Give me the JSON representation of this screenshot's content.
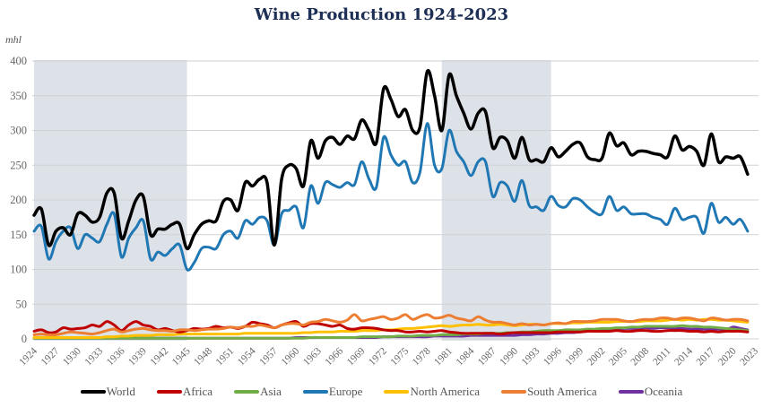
{
  "chart_data": {
    "type": "line",
    "title": "Wine Production 1924-2023",
    "ylabel": "mhl",
    "xlabel": "",
    "ylim": [
      0,
      400
    ],
    "yticks": [
      0,
      50,
      100,
      150,
      200,
      250,
      300,
      350,
      400
    ],
    "xlim": [
      1924,
      2023
    ],
    "xticks": [
      1924,
      1927,
      1930,
      1933,
      1936,
      1939,
      1942,
      1945,
      1948,
      1951,
      1954,
      1957,
      1960,
      1963,
      1966,
      1969,
      1972,
      1975,
      1978,
      1981,
      1984,
      1987,
      1990,
      1993,
      1996,
      1999,
      2002,
      2005,
      2008,
      2011,
      2014,
      2017,
      2020,
      2023
    ],
    "grid": true,
    "legend_position": "bottom",
    "shaded_periods": [
      [
        1924,
        1945
      ],
      [
        1980,
        1995
      ]
    ],
    "x_start": 1924,
    "series": [
      {
        "name": "World",
        "color": "#000000",
        "values": [
          178,
          187,
          135,
          155,
          160,
          150,
          180,
          178,
          168,
          175,
          210,
          210,
          145,
          170,
          200,
          205,
          150,
          158,
          158,
          165,
          165,
          130,
          150,
          165,
          170,
          170,
          198,
          200,
          185,
          225,
          220,
          230,
          225,
          135,
          230,
          250,
          245,
          220,
          285,
          260,
          285,
          290,
          280,
          292,
          288,
          315,
          300,
          282,
          360,
          345,
          320,
          330,
          300,
          305,
          385,
          350,
          300,
          380,
          350,
          325,
          302,
          325,
          327,
          275,
          290,
          285,
          260,
          290,
          258,
          258,
          255,
          275,
          262,
          270,
          280,
          282,
          262,
          258,
          260,
          296,
          278,
          282,
          265,
          270,
          270,
          267,
          265,
          262,
          292,
          272,
          277,
          270,
          250,
          295,
          255,
          262,
          260,
          262,
          237
        ]
      },
      {
        "name": "Africa",
        "color": "#c00000",
        "values": [
          11,
          13,
          9,
          10,
          16,
          14,
          15,
          16,
          20,
          18,
          25,
          20,
          12,
          20,
          25,
          20,
          18,
          13,
          15,
          12,
          10,
          12,
          15,
          14,
          15,
          18,
          16,
          17,
          15,
          18,
          24,
          22,
          20,
          16,
          20,
          23,
          25,
          18,
          22,
          22,
          20,
          18,
          20,
          15,
          14,
          16,
          16,
          15,
          13,
          12,
          12,
          10,
          10,
          11,
          10,
          11,
          12,
          10,
          9,
          8,
          8,
          8,
          8,
          8,
          7,
          8,
          9,
          9,
          9,
          9,
          9,
          9,
          10,
          10,
          10,
          10,
          11,
          11,
          11,
          11,
          12,
          11,
          11,
          12,
          12,
          11,
          11,
          12,
          12,
          12,
          11,
          11,
          10,
          11,
          10,
          11,
          11,
          11,
          10
        ]
      },
      {
        "name": "Asia",
        "color": "#70ad47",
        "values": [
          1,
          1,
          1,
          1,
          1,
          1,
          1,
          1,
          1,
          1,
          1,
          1,
          1,
          1,
          1,
          1,
          1,
          1,
          1,
          1,
          1,
          1,
          1,
          1,
          1,
          1,
          1,
          1,
          1,
          1,
          1,
          1,
          1,
          1,
          1,
          1,
          1,
          1,
          2,
          2,
          2,
          2,
          2,
          2,
          2,
          3,
          3,
          3,
          3,
          3,
          4,
          4,
          4,
          5,
          5,
          5,
          6,
          6,
          6,
          7,
          7,
          7,
          8,
          8,
          8,
          9,
          9,
          10,
          10,
          11,
          12,
          12,
          12,
          13,
          13,
          13,
          14,
          14,
          15,
          15,
          16,
          16,
          17,
          17,
          18,
          18,
          18,
          18,
          18,
          19,
          18,
          18,
          17,
          17,
          16,
          15,
          14,
          13,
          12
        ]
      },
      {
        "name": "Europe",
        "color": "#1f77b4",
        "values": [
          155,
          162,
          115,
          140,
          155,
          160,
          130,
          150,
          145,
          140,
          165,
          180,
          118,
          145,
          160,
          170,
          115,
          125,
          120,
          130,
          135,
          100,
          110,
          130,
          132,
          130,
          150,
          155,
          145,
          170,
          165,
          175,
          170,
          135,
          180,
          185,
          190,
          160,
          220,
          195,
          225,
          222,
          218,
          225,
          222,
          255,
          230,
          218,
          290,
          265,
          250,
          255,
          225,
          240,
          310,
          250,
          245,
          300,
          270,
          255,
          235,
          255,
          255,
          205,
          225,
          220,
          198,
          228,
          192,
          190,
          185,
          205,
          192,
          190,
          202,
          200,
          190,
          182,
          180,
          205,
          185,
          190,
          180,
          180,
          180,
          175,
          172,
          165,
          188,
          172,
          175,
          175,
          152,
          195,
          168,
          175,
          165,
          172,
          155
        ]
      },
      {
        "name": "North America",
        "color": "#ffc000",
        "values": [
          2,
          2,
          2,
          2,
          2,
          2,
          2,
          2,
          2,
          2,
          3,
          3,
          4,
          4,
          5,
          5,
          5,
          6,
          6,
          6,
          7,
          7,
          7,
          7,
          7,
          7,
          7,
          7,
          7,
          8,
          8,
          8,
          8,
          8,
          8,
          8,
          8,
          9,
          9,
          10,
          10,
          10,
          11,
          11,
          11,
          12,
          12,
          12,
          13,
          13,
          14,
          15,
          15,
          16,
          17,
          18,
          19,
          18,
          19,
          20,
          20,
          21,
          20,
          20,
          21,
          20,
          19,
          20,
          21,
          21,
          20,
          22,
          22,
          22,
          23,
          23,
          24,
          24,
          24,
          24,
          25,
          25,
          25,
          25,
          26,
          26,
          26,
          27,
          28,
          27,
          28,
          27,
          28,
          28,
          27,
          27,
          26,
          25,
          24
        ]
      },
      {
        "name": "South America",
        "color": "#ed7d31",
        "values": [
          6,
          7,
          6,
          6,
          8,
          10,
          9,
          8,
          7,
          9,
          12,
          14,
          10,
          12,
          14,
          15,
          13,
          12,
          12,
          11,
          13,
          13,
          12,
          13,
          14,
          14,
          15,
          17,
          16,
          18,
          18,
          20,
          18,
          16,
          20,
          22,
          22,
          20,
          24,
          25,
          28,
          26,
          24,
          27,
          35,
          26,
          28,
          30,
          32,
          28,
          30,
          35,
          28,
          32,
          35,
          30,
          31,
          34,
          30,
          28,
          26,
          32,
          27,
          24,
          24,
          22,
          20,
          22,
          20,
          21,
          20,
          22,
          23,
          22,
          25,
          25,
          25,
          26,
          28,
          28,
          28,
          26,
          25,
          27,
          28,
          28,
          30,
          30,
          28,
          30,
          30,
          28,
          26,
          30,
          29,
          27,
          28,
          28,
          26
        ]
      },
      {
        "name": "Oceania",
        "color": "#7030a0",
        "values": [
          1,
          1,
          1,
          1,
          1,
          1,
          1,
          1,
          1,
          1,
          1,
          1,
          1,
          1,
          1,
          1,
          1,
          1,
          1,
          1,
          1,
          1,
          1,
          1,
          1,
          1,
          1,
          1,
          1,
          1,
          1,
          1,
          1,
          1,
          1,
          1,
          2,
          2,
          2,
          2,
          2,
          2,
          2,
          2,
          2,
          2,
          2,
          2,
          3,
          3,
          3,
          3,
          3,
          3,
          3,
          4,
          4,
          4,
          4,
          4,
          5,
          5,
          5,
          5,
          5,
          5,
          5,
          6,
          6,
          7,
          7,
          8,
          8,
          9,
          9,
          10,
          11,
          12,
          12,
          13,
          14,
          15,
          15,
          15,
          16,
          15,
          16,
          16,
          15,
          15,
          14,
          14,
          14,
          14,
          14,
          13,
          17,
          15,
          13
        ]
      }
    ]
  }
}
